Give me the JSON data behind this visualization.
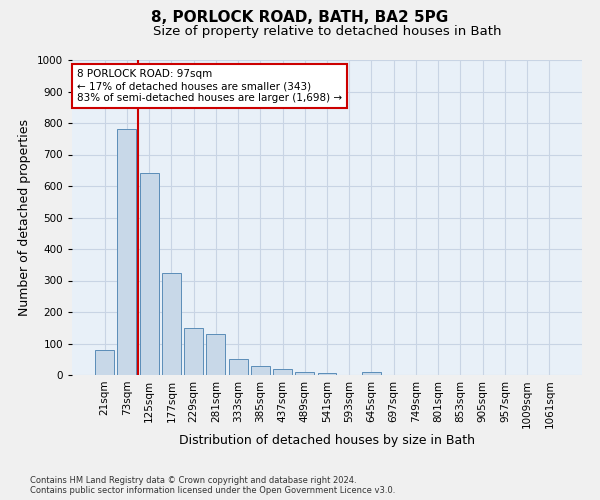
{
  "title1": "8, PORLOCK ROAD, BATH, BA2 5PG",
  "title2": "Size of property relative to detached houses in Bath",
  "xlabel": "Distribution of detached houses by size in Bath",
  "ylabel": "Number of detached properties",
  "categories": [
    "21sqm",
    "73sqm",
    "125sqm",
    "177sqm",
    "229sqm",
    "281sqm",
    "333sqm",
    "385sqm",
    "437sqm",
    "489sqm",
    "541sqm",
    "593sqm",
    "645sqm",
    "697sqm",
    "749sqm",
    "801sqm",
    "853sqm",
    "905sqm",
    "957sqm",
    "1009sqm",
    "1061sqm"
  ],
  "values": [
    80,
    780,
    640,
    325,
    150,
    130,
    50,
    30,
    20,
    10,
    5,
    0,
    10,
    0,
    0,
    0,
    0,
    0,
    0,
    0,
    0
  ],
  "bar_color": "#c8d8e8",
  "bar_edge_color": "#5b8db8",
  "ylim": [
    0,
    1000
  ],
  "yticks": [
    0,
    100,
    200,
    300,
    400,
    500,
    600,
    700,
    800,
    900,
    1000
  ],
  "vline_x": 1.5,
  "annotation_text": "8 PORLOCK ROAD: 97sqm\n← 17% of detached houses are smaller (343)\n83% of semi-detached houses are larger (1,698) →",
  "annotation_box_color": "#ffffff",
  "annotation_box_edge": "#cc0000",
  "footnote1": "Contains HM Land Registry data © Crown copyright and database right 2024.",
  "footnote2": "Contains public sector information licensed under the Open Government Licence v3.0.",
  "bg_color": "#e8f0f8",
  "grid_color": "#c8d4e4",
  "title1_fontsize": 11,
  "title2_fontsize": 9.5,
  "xlabel_fontsize": 9,
  "ylabel_fontsize": 9,
  "tick_fontsize": 7.5,
  "ann_fontsize": 7.5
}
